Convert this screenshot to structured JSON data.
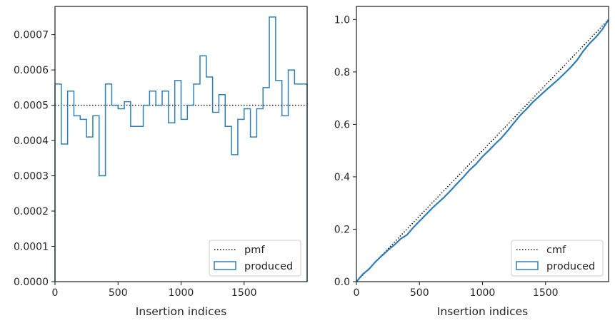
{
  "colors": {
    "produced": "#2f7fb6",
    "reference": "#111111",
    "axes": "#262626",
    "legend_border": "#cccccc"
  },
  "chart_data": [
    {
      "type": "histogram-step",
      "title": "",
      "xlabel": "Insertion indices",
      "ylabel": "",
      "xlim": [
        0,
        2000
      ],
      "ylim": [
        0,
        0.00078
      ],
      "xticks": [
        0,
        500,
        1000,
        1500
      ],
      "xtick_labels": [
        "0",
        "500",
        "1000",
        "1500"
      ],
      "yticks": [
        0,
        0.0001,
        0.0002,
        0.0003,
        0.0004,
        0.0005,
        0.0006,
        0.0007
      ],
      "ytick_labels": [
        "0.0000",
        "0.0001",
        "0.0002",
        "0.0003",
        "0.0004",
        "0.0005",
        "0.0006",
        "0.0007"
      ],
      "grid": false,
      "legend_position": "lower-right",
      "bin_width": 50,
      "series": [
        {
          "name": "pmf",
          "style": "dotted",
          "values": [
            0.0005
          ]
        },
        {
          "name": "produced",
          "style": "step-outline",
          "values": [
            0.00056,
            0.00039,
            0.00054,
            0.00047,
            0.00046,
            0.00041,
            0.00047,
            0.0003,
            0.00056,
            0.0005,
            0.00049,
            0.00051,
            0.00044,
            0.00044,
            0.0005,
            0.00054,
            0.0005,
            0.00054,
            0.00045,
            0.00057,
            0.00046,
            0.0005,
            0.00056,
            0.00064,
            0.00058,
            0.00048,
            0.00053,
            0.00044,
            0.00036,
            0.00046,
            0.00049,
            0.00041,
            0.00049,
            0.00055,
            0.00075,
            0.00057,
            0.00047,
            0.0006,
            0.00056,
            0.00056
          ]
        }
      ]
    },
    {
      "type": "line",
      "title": "",
      "xlabel": "Insertion indices",
      "ylabel": "",
      "xlim": [
        0,
        2000
      ],
      "ylim": [
        0,
        1.05
      ],
      "xticks": [
        0,
        500,
        1000,
        1500
      ],
      "xtick_labels": [
        "0",
        "500",
        "1000",
        "1500"
      ],
      "yticks": [
        0,
        0.2,
        0.4,
        0.6,
        0.8,
        1.0
      ],
      "ytick_labels": [
        "0.0",
        "0.2",
        "0.4",
        "0.6",
        "0.8",
        "1.0"
      ],
      "grid": false,
      "legend_position": "lower-right",
      "series": [
        {
          "name": "cmf",
          "style": "dotted",
          "x": [
            0,
            2000
          ],
          "y": [
            0,
            1.0
          ]
        },
        {
          "name": "produced",
          "style": "solid",
          "x": [
            0,
            50,
            100,
            150,
            200,
            250,
            300,
            350,
            400,
            450,
            500,
            550,
            600,
            650,
            700,
            750,
            800,
            850,
            900,
            950,
            1000,
            1050,
            1100,
            1150,
            1200,
            1250,
            1300,
            1350,
            1400,
            1450,
            1500,
            1550,
            1600,
            1650,
            1700,
            1750,
            1800,
            1850,
            1900,
            1950,
            2000
          ],
          "y": [
            0,
            0.028,
            0.048,
            0.075,
            0.098,
            0.12,
            0.14,
            0.163,
            0.178,
            0.206,
            0.231,
            0.255,
            0.28,
            0.302,
            0.324,
            0.349,
            0.375,
            0.4,
            0.427,
            0.449,
            0.477,
            0.5,
            0.525,
            0.548,
            0.576,
            0.606,
            0.635,
            0.659,
            0.685,
            0.707,
            0.729,
            0.75,
            0.771,
            0.794,
            0.818,
            0.845,
            0.88,
            0.909,
            0.933,
            0.962,
            1.0
          ]
        }
      ]
    }
  ]
}
